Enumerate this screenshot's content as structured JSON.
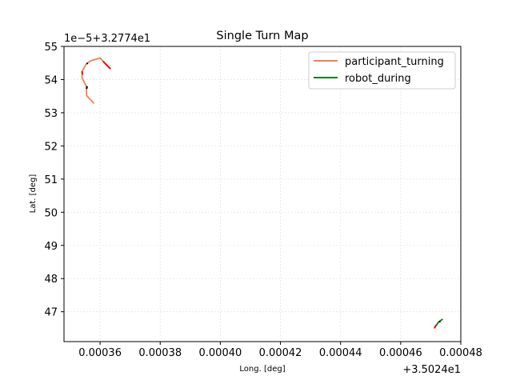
{
  "chart_data": {
    "type": "line",
    "title": "Single Turn Map",
    "xlabel": "Long. [deg]",
    "ylabel": "Lat. [deg]",
    "x_offset_label": "+3.5024e1",
    "y_offset_label": "1e−5+3.2774e1",
    "xlim": [
      0.000348,
      0.00048
    ],
    "ylim": [
      46.1,
      55.0
    ],
    "x_ticks": [
      {
        "value": 0.00036,
        "label": "0.00036"
      },
      {
        "value": 0.00038,
        "label": "0.00038"
      },
      {
        "value": 0.0004,
        "label": "0.00040"
      },
      {
        "value": 0.00042,
        "label": "0.00042"
      },
      {
        "value": 0.00044,
        "label": "0.00044"
      },
      {
        "value": 0.00046,
        "label": "0.00046"
      },
      {
        "value": 0.00048,
        "label": "0.00048"
      }
    ],
    "y_ticks": [
      {
        "value": 47,
        "label": "47"
      },
      {
        "value": 48,
        "label": "48"
      },
      {
        "value": 49,
        "label": "49"
      },
      {
        "value": 50,
        "label": "50"
      },
      {
        "value": 51,
        "label": "51"
      },
      {
        "value": 52,
        "label": "52"
      },
      {
        "value": 53,
        "label": "53"
      },
      {
        "value": 54,
        "label": "54"
      },
      {
        "value": 55,
        "label": "55"
      }
    ],
    "grid": true,
    "legend_position": "top-right",
    "series": [
      {
        "name": "participant_turning",
        "color": "#f08050",
        "x": [
          0.000358,
          0.0003555,
          0.0003555,
          0.000354,
          0.000354,
          0.0003555,
          0.000357,
          0.00036,
          0.000362
        ],
        "y": [
          53.28,
          53.52,
          53.78,
          54.05,
          54.25,
          54.48,
          54.57,
          54.65,
          54.45
        ]
      },
      {
        "name": "robot_during",
        "color": "#008000",
        "x": [
          0.0004715,
          0.0004725,
          0.000474
        ],
        "y": [
          46.55,
          46.68,
          46.78
        ]
      }
    ],
    "markers": [
      {
        "color": "#ff0000",
        "x": [
          0.000361,
          0.0003635
        ],
        "y": [
          54.55,
          54.32
        ]
      },
      {
        "color": "#ff0000",
        "x": [
          0.000354,
          0.0003542
        ],
        "y": [
          54.25,
          54.15
        ]
      },
      {
        "color": "#000000",
        "x": [
          0.0003555,
          0.0003557
        ],
        "y": [
          53.72,
          53.8
        ]
      },
      {
        "color": "#000000",
        "x": [
          0.0003556,
          0.0003559
        ],
        "y": [
          54.47,
          54.5
        ]
      },
      {
        "color": "#ff0000",
        "x": [
          0.0004712,
          0.0004718
        ],
        "y": [
          46.5,
          46.6
        ]
      },
      {
        "color": "#000000",
        "x": [
          0.0004728,
          0.0004732
        ],
        "y": [
          46.69,
          46.72
        ]
      }
    ]
  }
}
